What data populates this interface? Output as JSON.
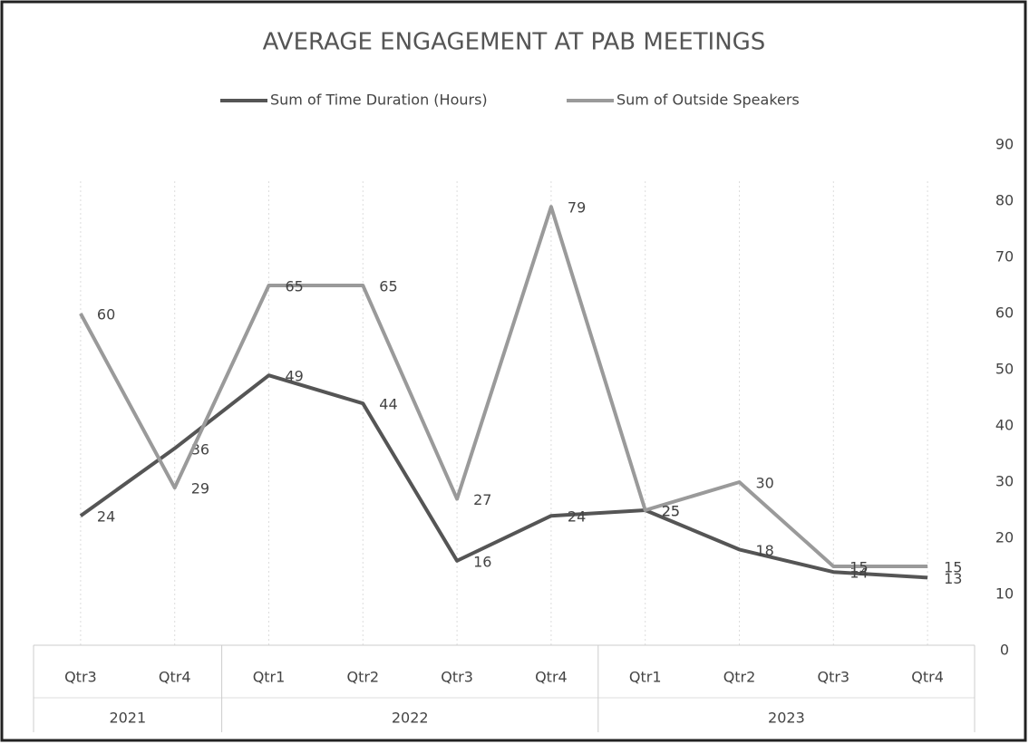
{
  "chart_data": {
    "type": "line",
    "title": "AVERAGE ENGAGEMENT AT PAB MEETINGS",
    "groups": [
      {
        "label": "2021",
        "categories": [
          "Qtr3",
          "Qtr4"
        ]
      },
      {
        "label": "2022",
        "categories": [
          "Qtr1",
          "Qtr2",
          "Qtr3",
          "Qtr4"
        ]
      },
      {
        "label": "2023",
        "categories": [
          "Qtr1",
          "Qtr2",
          "Qtr3",
          "Qtr4"
        ]
      }
    ],
    "series": [
      {
        "name": "Sum of Time Duration (Hours)",
        "color": "#555555",
        "values": [
          24,
          36,
          49,
          44,
          16,
          24,
          25,
          18,
          14,
          13
        ]
      },
      {
        "name": "Sum of Outside Speakers",
        "color": "#9a9a9a",
        "values": [
          60,
          29,
          65,
          65,
          27,
          79,
          25,
          30,
          15,
          15
        ]
      }
    ],
    "ylim": [
      0,
      90
    ],
    "yticks": [
      0,
      10,
      20,
      30,
      40,
      50,
      60,
      70,
      80,
      90
    ],
    "y_axis_side": "right",
    "grid": "x",
    "data_labels": true,
    "legend": "top"
  }
}
